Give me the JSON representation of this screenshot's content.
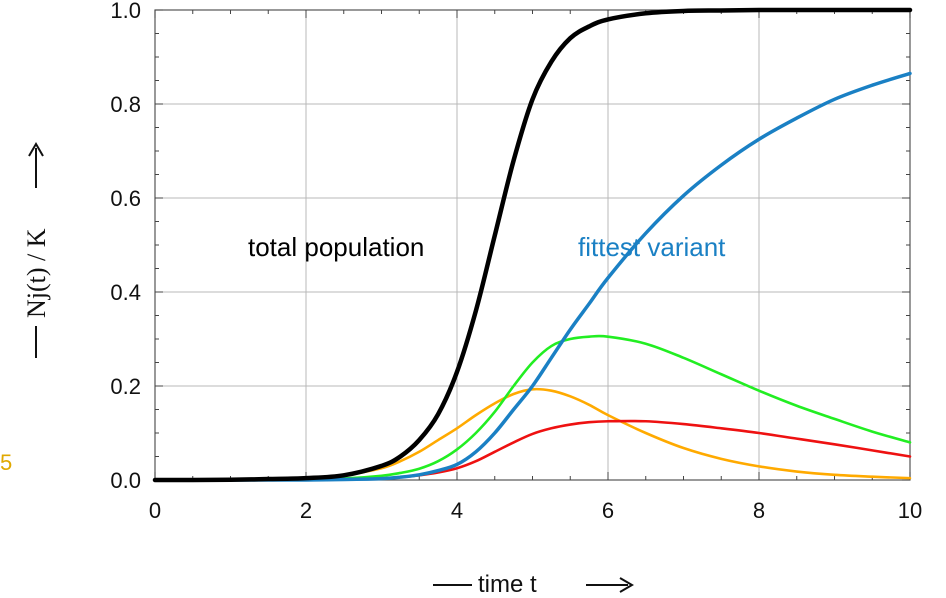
{
  "chart_data": {
    "type": "line",
    "xlim": [
      0,
      10
    ],
    "ylim": [
      0,
      1
    ],
    "x_ticks": [
      "0",
      "2",
      "4",
      "6",
      "8",
      "10"
    ],
    "y_ticks": [
      "0.0",
      "0.2",
      "0.4",
      "0.6",
      "0.8",
      "1.0"
    ],
    "grid": true,
    "xlabel": "time  t",
    "ylabel": "Nj(t) / K",
    "annotations": [
      {
        "text": "total population",
        "color": "#000000"
      },
      {
        "text": "fittest variant",
        "color": "#1a80c4"
      }
    ],
    "stray_text": {
      "text": "5",
      "color": "#e0a800"
    },
    "x": [
      0,
      0.5,
      1,
      1.5,
      2,
      2.5,
      3,
      3.25,
      3.5,
      3.75,
      4,
      4.25,
      4.5,
      4.75,
      5,
      5.25,
      5.5,
      5.75,
      6,
      6.5,
      7,
      7.5,
      8,
      8.5,
      9,
      9.5,
      10
    ],
    "series": [
      {
        "key": "total",
        "color": "#000000",
        "width": 4.5,
        "values": [
          0.0,
          0.0,
          0.0005,
          0.002,
          0.004,
          0.01,
          0.03,
          0.05,
          0.085,
          0.14,
          0.23,
          0.36,
          0.52,
          0.68,
          0.81,
          0.89,
          0.94,
          0.965,
          0.98,
          0.993,
          0.998,
          0.999,
          1.0,
          1.0,
          1.0,
          1.0,
          1.0
        ]
      },
      {
        "key": "fittest",
        "color": "#1a80c4",
        "width": 3.5,
        "values": [
          0.0,
          0.0,
          0.0,
          0.0,
          0.0,
          0.001,
          0.003,
          0.006,
          0.011,
          0.02,
          0.033,
          0.06,
          0.1,
          0.15,
          0.2,
          0.26,
          0.32,
          0.375,
          0.43,
          0.525,
          0.605,
          0.67,
          0.725,
          0.77,
          0.81,
          0.84,
          0.865
        ]
      },
      {
        "key": "orange",
        "color": "#ffaa00",
        "width": 2.6,
        "values": [
          0.0,
          0.0,
          0.0,
          0.001,
          0.003,
          0.01,
          0.025,
          0.04,
          0.06,
          0.085,
          0.11,
          0.138,
          0.163,
          0.183,
          0.193,
          0.19,
          0.178,
          0.16,
          0.138,
          0.1,
          0.068,
          0.045,
          0.029,
          0.018,
          0.011,
          0.007,
          0.004
        ]
      },
      {
        "key": "green",
        "color": "#22ee22",
        "width": 2.6,
        "values": [
          0.0,
          0.0,
          0.0,
          0.0,
          0.001,
          0.003,
          0.009,
          0.015,
          0.024,
          0.04,
          0.065,
          0.1,
          0.145,
          0.2,
          0.25,
          0.285,
          0.3,
          0.305,
          0.305,
          0.29,
          0.26,
          0.225,
          0.19,
          0.158,
          0.13,
          0.103,
          0.08
        ]
      },
      {
        "key": "red",
        "color": "#ee1111",
        "width": 2.6,
        "values": [
          0.0,
          0.0,
          0.0,
          0.0,
          0.0,
          0.001,
          0.003,
          0.006,
          0.01,
          0.016,
          0.025,
          0.04,
          0.06,
          0.08,
          0.098,
          0.11,
          0.118,
          0.123,
          0.125,
          0.125,
          0.119,
          0.11,
          0.1,
          0.088,
          0.076,
          0.063,
          0.05
        ]
      }
    ]
  }
}
